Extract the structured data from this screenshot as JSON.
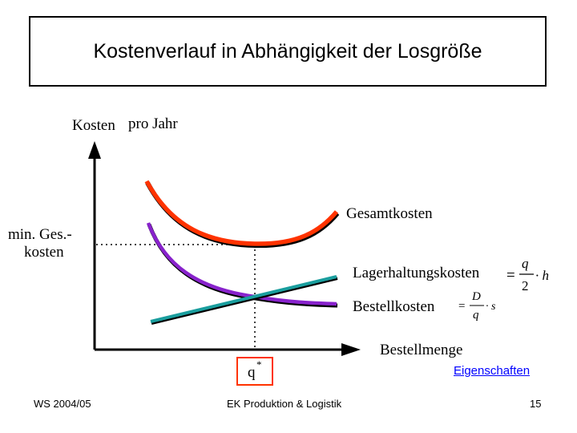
{
  "slide": {
    "title": "Kostenverlauf in Abhängigkeit der Losgröße",
    "link_label": "Eigenschaften",
    "footer_left": "WS 2004/05",
    "footer_center": "EK Produktion & Logistik",
    "page_number": "15"
  },
  "diagram": {
    "y_axis_label_1": "Kosten",
    "y_axis_label_2": "pro Jahr",
    "x_axis_label": "Bestellmenge",
    "min_cost_label_1": "min. Ges.-",
    "min_cost_label_2": "kosten",
    "optimum_label": "q",
    "optimum_superscript": "*",
    "curves": {
      "total": "Gesamtkosten",
      "holding": "Lagerhaltungskosten",
      "ordering": "Bestellkosten"
    },
    "formula_holding": {
      "eq": "=",
      "num": "q",
      "den": "2",
      "factor": "· h"
    },
    "formula_ordering": {
      "eq": "=",
      "num": "D",
      "den": "q",
      "factor": "· s"
    },
    "colors": {
      "total": "#ff3300",
      "holding": "#1a9e9e",
      "ordering": "#8822cc",
      "optimum_box": "#ff3300"
    }
  }
}
